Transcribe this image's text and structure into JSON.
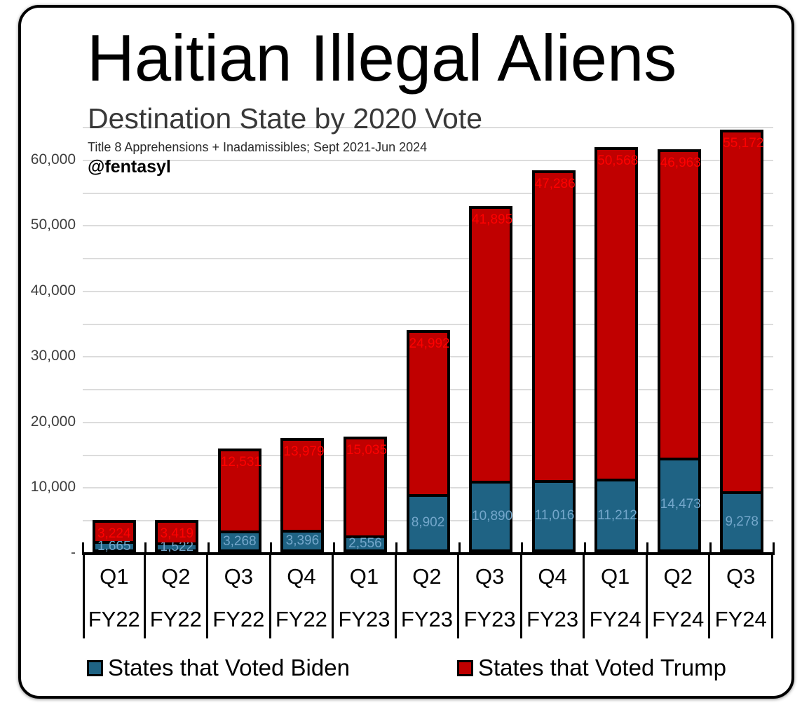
{
  "chart_data": {
    "type": "bar",
    "stacked": true,
    "title": "Haitian Illegal Aliens",
    "subtitle": "Destination State by 2020 Vote",
    "note": "Title 8 Apprehensions + Inadamissibles; Sept 2021-Jun 2024",
    "watermark": "@fentasyl",
    "categories": [
      {
        "quarter": "Q1",
        "fy": "FY22"
      },
      {
        "quarter": "Q2",
        "fy": "FY22"
      },
      {
        "quarter": "Q3",
        "fy": "FY22"
      },
      {
        "quarter": "Q4",
        "fy": "FY22"
      },
      {
        "quarter": "Q1",
        "fy": "FY23"
      },
      {
        "quarter": "Q2",
        "fy": "FY23"
      },
      {
        "quarter": "Q3",
        "fy": "FY23"
      },
      {
        "quarter": "Q4",
        "fy": "FY23"
      },
      {
        "quarter": "Q1",
        "fy": "FY24"
      },
      {
        "quarter": "Q2",
        "fy": "FY24"
      },
      {
        "quarter": "Q3",
        "fy": "FY24"
      }
    ],
    "series": [
      {
        "name": "States that Voted Biden",
        "color": "#1F6384",
        "label_color": "#74A7CB",
        "values": [
          1665,
          1522,
          3268,
          3396,
          2556,
          8902,
          10890,
          11016,
          11212,
          14473,
          9278
        ],
        "labels": [
          "1,665",
          "1,522",
          "3,268",
          "3,396",
          "2,556",
          "8,902",
          "10,890",
          "11,016",
          "11,212",
          "14,473",
          "9,278"
        ]
      },
      {
        "name": "States that Voted Trump",
        "color": "#C00000",
        "label_color": "#FF0000",
        "values": [
          3224,
          3419,
          12531,
          13979,
          15035,
          24992,
          41895,
          47286,
          50568,
          46963,
          55172
        ],
        "labels": [
          "3,224",
          "3,419",
          "12,531",
          "13,979",
          "15,035",
          "24,992",
          "41,895",
          "47,286",
          "50,568",
          "46,963",
          "55,172"
        ]
      }
    ],
    "y_axis": {
      "max": 65000,
      "gridline_step": 5000,
      "ticks": [
        {
          "label": "-",
          "value": 0
        },
        {
          "label": "10,000",
          "value": 10000
        },
        {
          "label": "20,000",
          "value": 20000
        },
        {
          "label": "30,000",
          "value": 30000
        },
        {
          "label": "40,000",
          "value": 40000
        },
        {
          "label": "50,000",
          "value": 50000
        },
        {
          "label": "60,000",
          "value": 60000
        }
      ]
    },
    "legend": {
      "position": "bottom",
      "entries": [
        "States that Voted Biden",
        "States that Voted Trump"
      ]
    },
    "colors": {
      "grid": "#DCDCDC",
      "axis": "#000000",
      "background": "#FFFFFF"
    }
  }
}
